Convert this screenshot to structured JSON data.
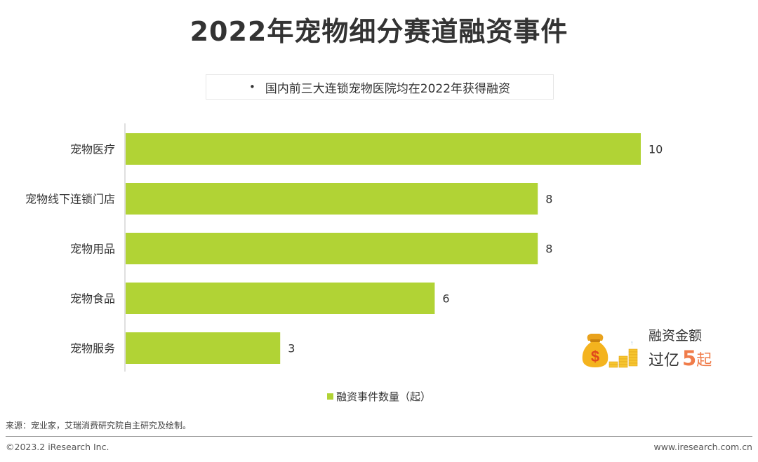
{
  "title": "2022年宠物细分赛道融资事件",
  "note": {
    "bullet": "•",
    "text": "国内前三大连锁宠物医院均在2022年获得融资"
  },
  "chart_data": {
    "type": "bar",
    "orientation": "horizontal",
    "categories": [
      "宠物医疗",
      "宠物线下连锁门店",
      "宠物用品",
      "宠物食品",
      "宠物服务"
    ],
    "values": [
      10,
      8,
      8,
      6,
      3
    ],
    "series": [
      {
        "name": "融资事件数量（起）",
        "values": [
          10,
          8,
          8,
          6,
          3
        ]
      }
    ],
    "bar_color": "#b1d335",
    "xlim": [
      0,
      10
    ],
    "legend": "bottom-center"
  },
  "legend": {
    "label": "融资事件数量（起）"
  },
  "callout": {
    "label_line1": "融资金额",
    "prefix": "过亿",
    "number": "5",
    "unit": "起",
    "icon": "money-bag-coins-icon",
    "accent_color": "#f07c4a"
  },
  "source": "来源：宠业家，艾瑞消费研究院自主研究及绘制。",
  "footer": {
    "copyright": "©2023.2 iResearch Inc.",
    "website": "www.iresearch.com.cn"
  }
}
